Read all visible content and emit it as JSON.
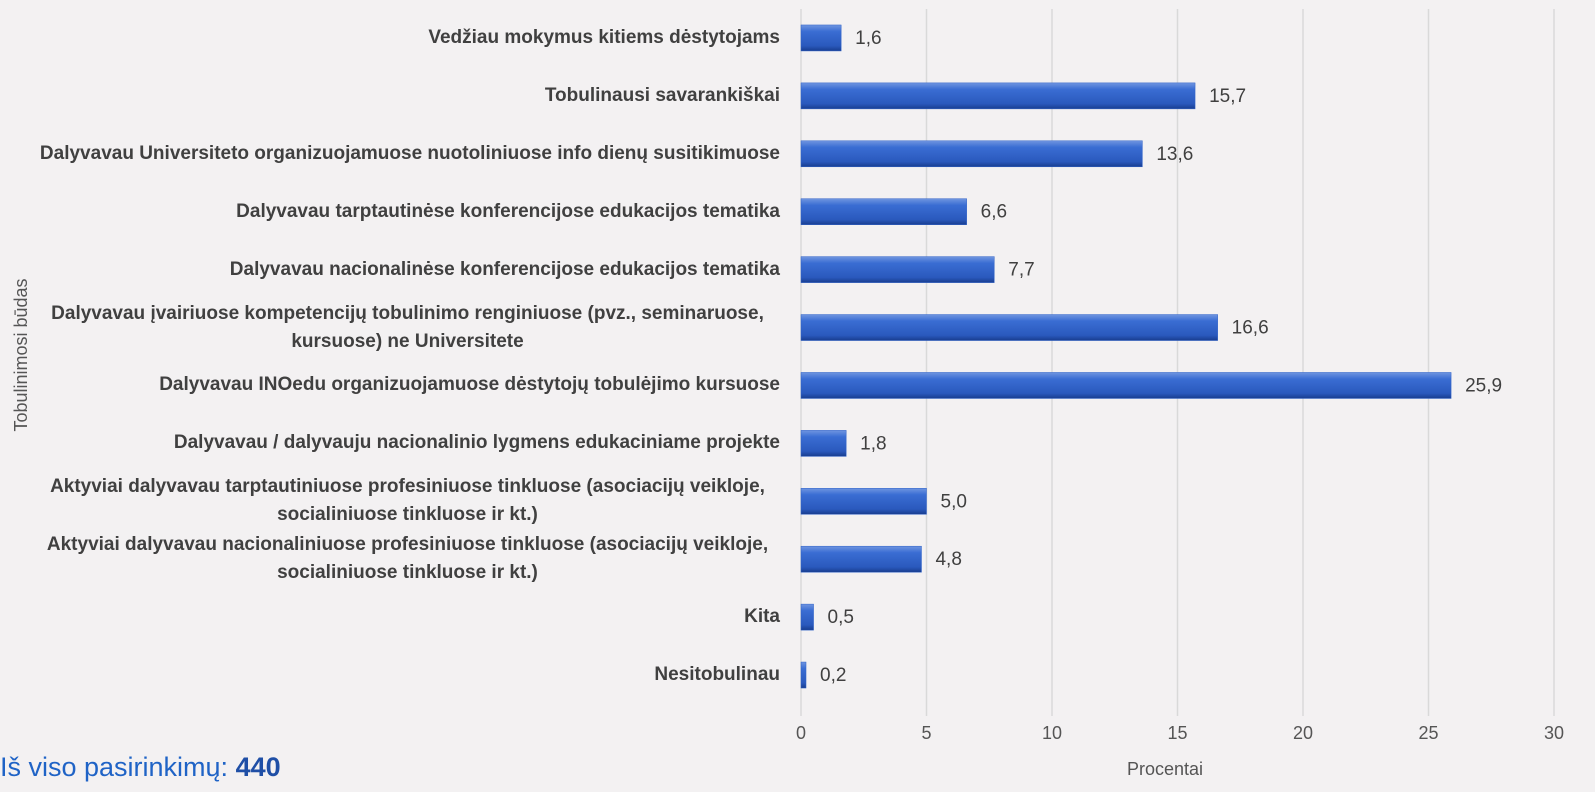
{
  "chart_data": {
    "type": "barh",
    "x_label": "Procentai",
    "y_label": "Tobulinimosi būdas",
    "categories": [
      "Vedžiau mokymus kitiems dėstytojams",
      "Tobulinausi savarankiškai",
      "Dalyvavau Universiteto organizuojamuose nuotoliniuose info dienų susitikimuose",
      "Dalyvavau tarptautinėse konferencijose edukacijos tematika",
      "Dalyvavau nacionalinėse konferencijose edukacijos tematika",
      "Dalyvavau įvairiuose kompetencijų tobulinimo renginiuose (pvz., seminaruose, kursuose) ne Universitete",
      "Dalyvavau INOedu organizuojamuose dėstytojų tobulėjimo kursuose",
      "Dalyvavau / dalyvauju nacionalinio lygmens edukaciniame projekte",
      "Aktyviai dalyvavau tarptautiniuose profesiniuose tinkluose (asociacijų veikloje, socialiniuose tinkluose ir kt.)",
      "Aktyviai dalyvavau nacionaliniuose profesiniuose tinkluose (asociacijų veikloje, socialiniuose tinkluose ir kt.)",
      "Kita",
      "Nesitobulinau"
    ],
    "values": [
      1.6,
      15.7,
      13.6,
      6.6,
      7.7,
      16.6,
      25.9,
      1.8,
      5.0,
      4.8,
      0.5,
      0.2
    ],
    "value_labels": [
      "1,6",
      "15,7",
      "13,6",
      "6,6",
      "7,7",
      "16,6",
      "25,9",
      "1,8",
      "5,0",
      "4,8",
      "0,5",
      "0,2"
    ],
    "color": "#2f62c8",
    "xlim": [
      0,
      30
    ],
    "xticks": [
      0,
      5,
      10,
      15,
      20,
      25,
      30
    ],
    "grid": true
  },
  "total": {
    "label": "Iš viso pasirinkimų: ",
    "value": 440
  }
}
